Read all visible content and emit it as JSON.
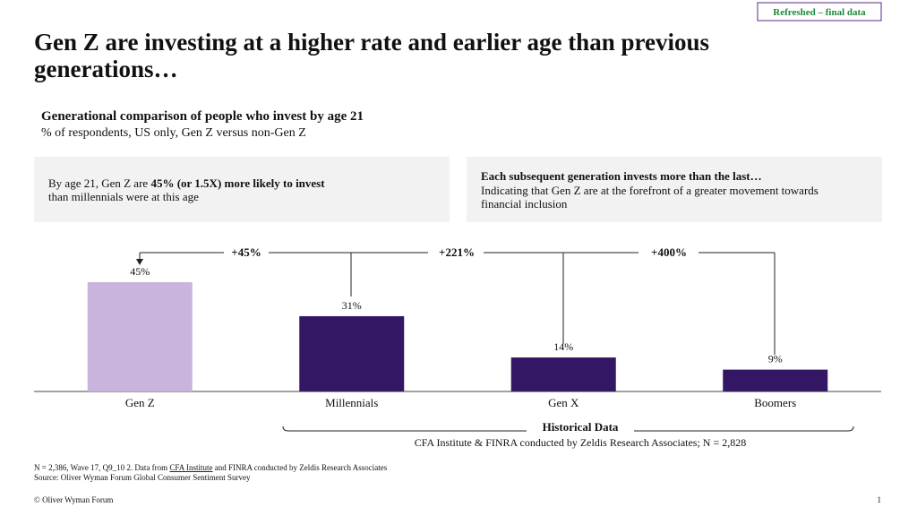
{
  "tag": "Refreshed – final data",
  "header": {
    "title_lines": [
      "Gen Z are investing at a higher rate and earlier age than previous",
      "generations…"
    ]
  },
  "callouts": {
    "left": {
      "runs": [
        "By age 21, Gen Z are ",
        "45% (or 1.5X) more likely to invest",
        "than millennials were at this age"
      ]
    },
    "right": {
      "heading": "Each subsequent generation invests more than the last…",
      "lines": [
        "Indicating that Gen Z are at the forefront of a greater movement towards",
        "financial inclusion"
      ]
    }
  },
  "chart_data": {
    "type": "bar",
    "title": "Generational comparison of people who invest by age 21",
    "subtitle": "% of respondents, US only, Gen Z versus non-Gen Z",
    "categories": [
      "Gen Z",
      "Millennials",
      "Gen X",
      "Boomers"
    ],
    "values": [
      45,
      31,
      14,
      9
    ],
    "value_labels": [
      "45%",
      "31%",
      "14%",
      "9%"
    ],
    "colors": [
      "#c9b4de",
      "#331764",
      "#331764",
      "#331764"
    ],
    "annotations": [
      "+45%",
      "+221%",
      "+400%"
    ],
    "bracket": {
      "label": "Historical Data",
      "note": "CFA Institute & FINRA conducted by Zeldis Research Associates; N = 2,828"
    }
  },
  "footnotes": {
    "note_runs": [
      "N = 2,386, Wave 17, Q9_10 2. Data from ",
      "CFA  Institute",
      " and FINRA conducted by Zeldis Research Associates"
    ],
    "source": "Source: Oliver Wyman Forum Global Consumer Sentiment Survey"
  },
  "footer": {
    "copyright": "© Oliver Wyman Forum",
    "page": 1
  }
}
